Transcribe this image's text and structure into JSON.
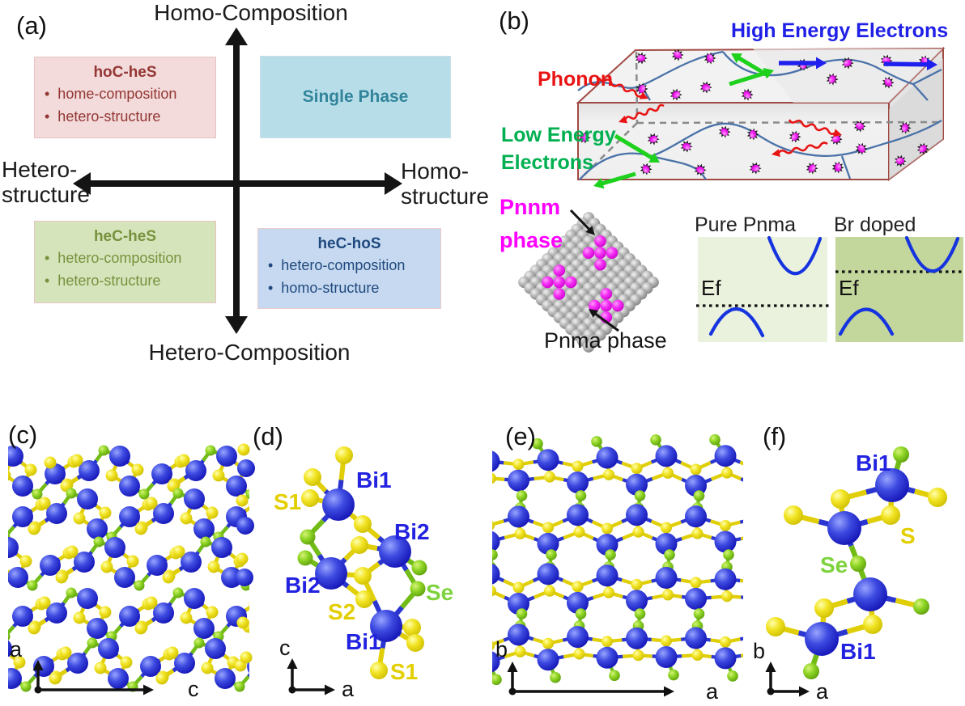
{
  "fig": {
    "a": {
      "label": "(a)",
      "axis_top": "Homo-Composition",
      "axis_bottom": "Hetero-Composition",
      "axis_left": [
        "Hetero-",
        "structure"
      ],
      "axis_right": [
        "Homo-",
        "structure"
      ],
      "arrow_color": "#141414",
      "quadrants": [
        {
          "title": "hoC-heS",
          "bullets": [
            "home-composition",
            "hetero-structure"
          ],
          "bg": "#F2DBDA",
          "border": "#E7C4C3",
          "color": "#943634"
        },
        {
          "title": "Single Phase",
          "bullets": [],
          "bg": "#B7DEE8",
          "border": "#C9E0E8",
          "color": "#31849B"
        },
        {
          "title": "heC-heS",
          "bullets": [
            "hetero-composition",
            "hetero-structure"
          ],
          "bg": "#D6E4BC",
          "border": "#E7C4C3",
          "color": "#76923C"
        },
        {
          "title": "heC-hoS",
          "bullets": [
            "hetero-composition",
            "homo-structure"
          ],
          "bg": "#C6D9F1",
          "border": "#ECCBCA",
          "color": "#1F497D"
        }
      ]
    },
    "b": {
      "label": "(b)",
      "phonon": "Phonon",
      "high_energy": "High Energy Electrons",
      "low_energy": [
        "Low Energy",
        "Electrons"
      ],
      "pnnm": [
        "Pnnm",
        "phase"
      ],
      "pnma": "Pnma phase",
      "bands": [
        {
          "title": "Pure Pnma",
          "ef": "Ef",
          "bg": "#EAF1DD"
        },
        {
          "title": "Br doped",
          "ef": "Ef",
          "bg": "#C3D69B"
        }
      ],
      "colors": {
        "phonon": "#E81414",
        "high_energy": "#1F1FE8",
        "low_energy": "#00B050",
        "pnnm": "#FF00FF",
        "pnma": "#151515",
        "green_arrow": "#1DD11D",
        "blue_arrow": "#2020EE",
        "grain": "#4A72A8",
        "box_edge": "#A04A44",
        "band_curve": "#1534E0",
        "dash": "#8A8A8A"
      }
    },
    "c": {
      "label": "(c)",
      "axis_up": "a",
      "axis_right": "c"
    },
    "d": {
      "label": "(d)",
      "axis_up": "c",
      "axis_right": "a",
      "atom_labels": [
        {
          "text": "Bi1",
          "type": "bi"
        },
        {
          "text": "S1",
          "type": "s"
        },
        {
          "text": "Bi2",
          "type": "bi"
        },
        {
          "text": "Bi2",
          "type": "bi"
        },
        {
          "text": "S2",
          "type": "s"
        },
        {
          "text": "Se",
          "type": "se"
        },
        {
          "text": "Bi1",
          "type": "bi"
        },
        {
          "text": "S1",
          "type": "s"
        }
      ]
    },
    "e": {
      "label": "(e)",
      "axis_up": "b",
      "axis_right": "a"
    },
    "f": {
      "label": "(f)",
      "axis_up": "b",
      "axis_right": "a",
      "atom_labels": [
        {
          "text": "Bi1",
          "type": "bi"
        },
        {
          "text": "S",
          "type": "s"
        },
        {
          "text": "Se",
          "type": "se"
        },
        {
          "text": "Bi1",
          "type": "bi"
        }
      ]
    },
    "atoms": {
      "bi": "#2323CE",
      "s": "#EDDC0C",
      "se": "#7CC41E",
      "gray": "#8F8F8F",
      "magenta": "#F10EF1",
      "label_bi": "#2222E0",
      "label_s": "#E3CF00",
      "label_se": "#7ED33D"
    }
  }
}
